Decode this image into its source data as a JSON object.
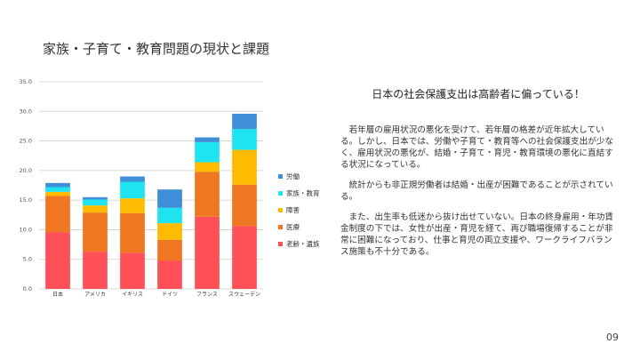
{
  "slide": {
    "title": "家族・子育て・教育問題の現状と課題",
    "headline": "日本の社会保護支出は高齢者に偏っている！",
    "paragraphs": [
      "若年層の雇用状況の悪化を受けて、若年層の格差が近年拡大している。しかし、日本では、労働や子育て・教育等への社会保護支出が少なく、雇用状況の悪化が、結婚・子育て・育児・教育環境の悪化に直結する状況になっている。",
      "統計からも非正規労働者は結婚・出産が困難であることが示されている。",
      "また、出生率も低迷から抜け出せていない。日本の終身雇用・年功賃金制度の下では、女性が出産・育児を経て、再び職場復帰することが非常に困難になっており、仕事と育児の両立支援や、ワークライフバランス施策も不十分である。"
    ],
    "page_number": "09"
  },
  "chart_data": {
    "type": "bar",
    "stacked": true,
    "categories": [
      "日本",
      "アメリカ",
      "イギリス",
      "ドイツ",
      "フランス",
      "スウェーデン"
    ],
    "ylim": [
      0,
      35
    ],
    "yticks": [
      "0.0",
      "5.0",
      "10.0",
      "15.0",
      "20.0",
      "25.0",
      "30.0",
      "35.0"
    ],
    "grid": true,
    "legend_position": "right",
    "series": [
      {
        "name": "老齢・遺族",
        "color": "#ff4f57",
        "values": [
          9.6,
          6.3,
          6.1,
          4.8,
          12.2,
          10.6
        ]
      },
      {
        "name": "医療",
        "color": "#f07722",
        "values": [
          6.1,
          6.6,
          6.7,
          3.5,
          7.6,
          7.0
        ]
      },
      {
        "name": "障害",
        "color": "#ffbb00",
        "values": [
          0.7,
          1.2,
          2.5,
          2.8,
          1.6,
          5.9
        ]
      },
      {
        "name": "家族・教育",
        "color": "#1de4f0",
        "values": [
          0.8,
          1.0,
          2.8,
          2.6,
          3.4,
          3.5
        ]
      },
      {
        "name": "労働",
        "color": "#3f8fd8",
        "values": [
          0.7,
          0.4,
          0.9,
          3.1,
          0.8,
          2.6
        ]
      }
    ]
  }
}
